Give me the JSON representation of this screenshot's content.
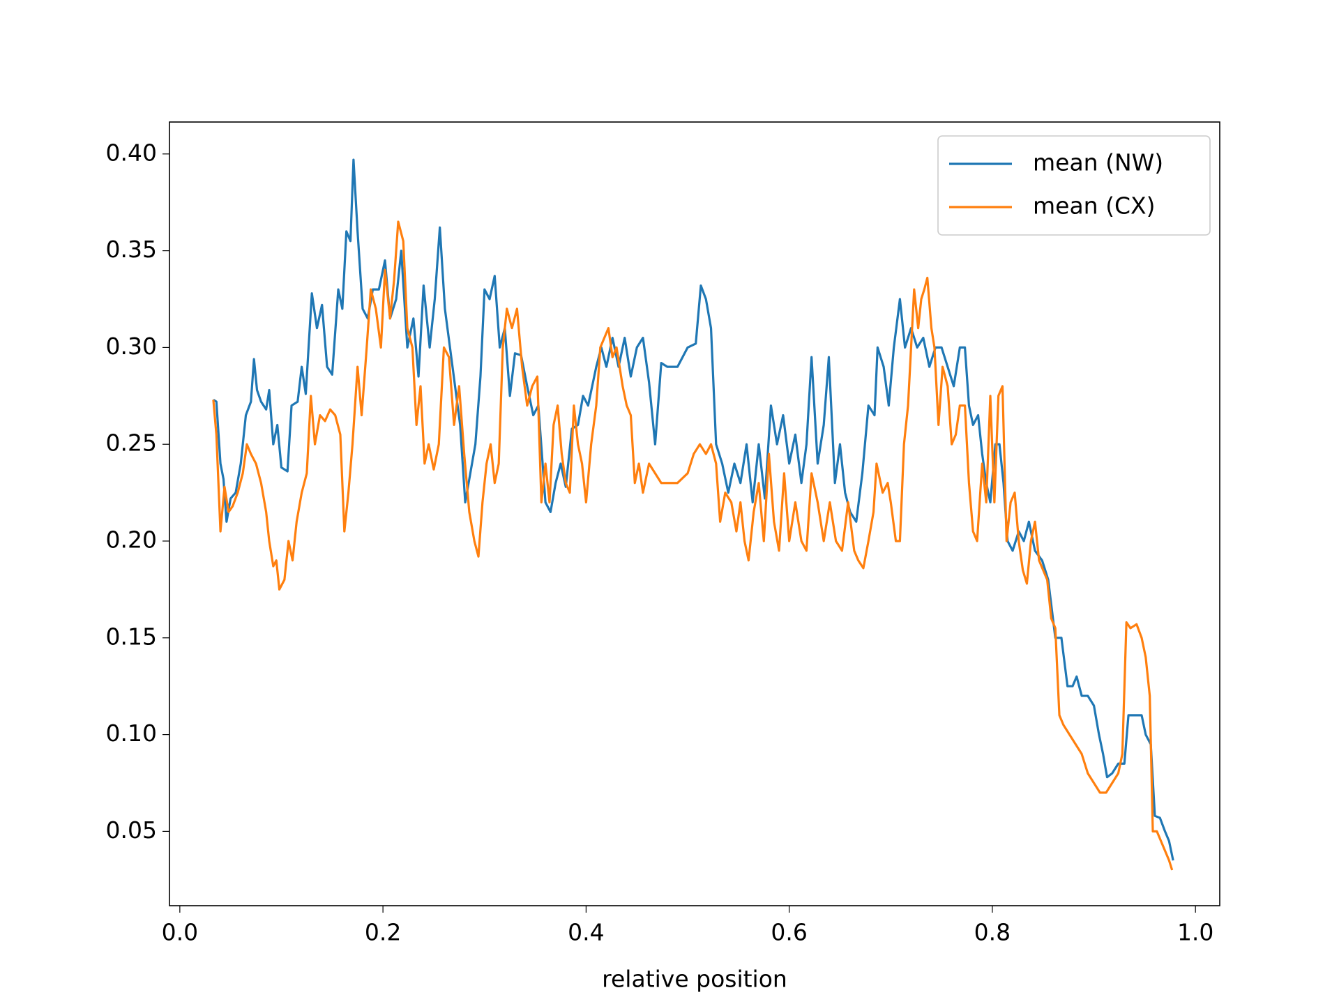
{
  "chart_data": {
    "type": "line",
    "xlabel": "relative position",
    "xlim": [
      -0.0102,
      1.0239
    ],
    "ylim": [
      0.0116,
      0.4165
    ],
    "xticks": [
      {
        "value": 0,
        "label": "0.0"
      },
      0.2,
      0.4,
      0.6,
      0.8,
      {
        "value": 1,
        "label": "1.0"
      }
    ],
    "yticks": [
      0.05,
      {
        "value": 0.1,
        "label": "0.10"
      },
      0.15,
      {
        "value": 0.2,
        "label": "0.20"
      },
      0.25,
      {
        "value": 0.3,
        "label": "0.30"
      },
      0.35,
      {
        "value": 0.4,
        "label": "0.40"
      }
    ],
    "legend": "upper right",
    "series": [
      {
        "name": "mean (NW)",
        "color": "#1f77b4",
        "x": [
          0.033,
          0.036,
          0.04,
          0.043,
          0.046,
          0.05,
          0.055,
          0.06,
          0.065,
          0.07,
          0.073,
          0.076,
          0.08,
          0.085,
          0.088,
          0.092,
          0.096,
          0.1,
          0.106,
          0.11,
          0.116,
          0.12,
          0.124,
          0.13,
          0.135,
          0.14,
          0.145,
          0.15,
          0.156,
          0.16,
          0.164,
          0.168,
          0.171,
          0.175,
          0.18,
          0.185,
          0.19,
          0.196,
          0.202,
          0.207,
          0.213,
          0.218,
          0.224,
          0.23,
          0.235,
          0.24,
          0.246,
          0.251,
          0.256,
          0.261,
          0.266,
          0.271,
          0.276,
          0.281,
          0.286,
          0.291,
          0.296,
          0.3,
          0.305,
          0.31,
          0.315,
          0.32,
          0.325,
          0.33,
          0.336,
          0.342,
          0.348,
          0.353,
          0.36,
          0.365,
          0.37,
          0.375,
          0.38,
          0.386,
          0.392,
          0.397,
          0.402,
          0.41,
          0.415,
          0.42,
          0.426,
          0.432,
          0.438,
          0.444,
          0.45,
          0.456,
          0.462,
          0.468,
          0.474,
          0.48,
          0.49,
          0.5,
          0.508,
          0.513,
          0.518,
          0.523,
          0.528,
          0.534,
          0.54,
          0.546,
          0.552,
          0.558,
          0.564,
          0.57,
          0.576,
          0.582,
          0.588,
          0.594,
          0.6,
          0.606,
          0.612,
          0.617,
          0.622,
          0.628,
          0.634,
          0.639,
          0.645,
          0.65,
          0.655,
          0.66,
          0.666,
          0.672,
          0.678,
          0.684,
          0.687,
          0.693,
          0.698,
          0.703,
          0.709,
          0.714,
          0.72,
          0.726,
          0.732,
          0.738,
          0.744,
          0.75,
          0.756,
          0.762,
          0.768,
          0.773,
          0.777,
          0.781,
          0.786,
          0.79,
          0.794,
          0.798,
          0.803,
          0.807,
          0.811,
          0.815,
          0.82,
          0.826,
          0.831,
          0.836,
          0.842,
          0.849,
          0.855,
          0.862,
          0.868,
          0.874,
          0.879,
          0.883,
          0.888,
          0.894,
          0.9,
          0.905,
          0.909,
          0.913,
          0.918,
          0.924,
          0.93,
          0.934,
          0.94,
          0.947,
          0.951,
          0.956,
          0.96,
          0.965,
          0.97,
          0.974,
          0.978
        ],
        "values": [
          0.273,
          0.272,
          0.24,
          0.232,
          0.21,
          0.222,
          0.225,
          0.24,
          0.265,
          0.272,
          0.294,
          0.278,
          0.272,
          0.268,
          0.278,
          0.25,
          0.26,
          0.238,
          0.236,
          0.27,
          0.272,
          0.29,
          0.276,
          0.328,
          0.31,
          0.322,
          0.29,
          0.286,
          0.33,
          0.32,
          0.36,
          0.355,
          0.397,
          0.36,
          0.32,
          0.315,
          0.33,
          0.33,
          0.345,
          0.315,
          0.325,
          0.35,
          0.3,
          0.315,
          0.285,
          0.332,
          0.3,
          0.325,
          0.362,
          0.32,
          0.3,
          0.28,
          0.26,
          0.22,
          0.235,
          0.25,
          0.285,
          0.33,
          0.325,
          0.337,
          0.3,
          0.31,
          0.275,
          0.297,
          0.296,
          0.28,
          0.265,
          0.27,
          0.22,
          0.215,
          0.23,
          0.24,
          0.228,
          0.258,
          0.26,
          0.275,
          0.27,
          0.29,
          0.3,
          0.29,
          0.305,
          0.29,
          0.305,
          0.285,
          0.3,
          0.305,
          0.282,
          0.25,
          0.292,
          0.29,
          0.29,
          0.3,
          0.302,
          0.332,
          0.325,
          0.31,
          0.25,
          0.24,
          0.225,
          0.24,
          0.23,
          0.25,
          0.22,
          0.25,
          0.222,
          0.27,
          0.25,
          0.265,
          0.24,
          0.255,
          0.23,
          0.25,
          0.295,
          0.24,
          0.26,
          0.295,
          0.23,
          0.25,
          0.225,
          0.215,
          0.21,
          0.235,
          0.27,
          0.265,
          0.3,
          0.29,
          0.27,
          0.3,
          0.325,
          0.3,
          0.31,
          0.3,
          0.305,
          0.29,
          0.3,
          0.3,
          0.29,
          0.28,
          0.3,
          0.3,
          0.27,
          0.26,
          0.265,
          0.245,
          0.23,
          0.22,
          0.25,
          0.25,
          0.23,
          0.2,
          0.195,
          0.205,
          0.2,
          0.21,
          0.195,
          0.19,
          0.18,
          0.15,
          0.15,
          0.125,
          0.125,
          0.13,
          0.12,
          0.12,
          0.115,
          0.1,
          0.09,
          0.078,
          0.08,
          0.085,
          0.085,
          0.11,
          0.11,
          0.11,
          0.1,
          0.095,
          0.058,
          0.057,
          0.05,
          0.045,
          0.035
        ]
      },
      {
        "name": "mean (CX)",
        "color": "#ff7f0e",
        "x": [
          0.033,
          0.036,
          0.04,
          0.044,
          0.048,
          0.052,
          0.057,
          0.062,
          0.066,
          0.07,
          0.075,
          0.08,
          0.085,
          0.088,
          0.092,
          0.095,
          0.098,
          0.103,
          0.107,
          0.111,
          0.115,
          0.12,
          0.125,
          0.129,
          0.133,
          0.138,
          0.143,
          0.148,
          0.153,
          0.158,
          0.162,
          0.166,
          0.17,
          0.175,
          0.179,
          0.184,
          0.188,
          0.193,
          0.198,
          0.202,
          0.207,
          0.211,
          0.215,
          0.22,
          0.224,
          0.229,
          0.233,
          0.237,
          0.241,
          0.245,
          0.25,
          0.255,
          0.26,
          0.265,
          0.27,
          0.275,
          0.28,
          0.285,
          0.29,
          0.294,
          0.298,
          0.302,
          0.306,
          0.31,
          0.314,
          0.318,
          0.322,
          0.327,
          0.332,
          0.337,
          0.342,
          0.347,
          0.352,
          0.356,
          0.36,
          0.364,
          0.368,
          0.372,
          0.376,
          0.38,
          0.384,
          0.388,
          0.392,
          0.396,
          0.4,
          0.405,
          0.41,
          0.414,
          0.418,
          0.422,
          0.426,
          0.43,
          0.436,
          0.44,
          0.444,
          0.448,
          0.452,
          0.456,
          0.462,
          0.468,
          0.474,
          0.48,
          0.49,
          0.5,
          0.506,
          0.512,
          0.518,
          0.523,
          0.528,
          0.532,
          0.537,
          0.543,
          0.548,
          0.552,
          0.556,
          0.56,
          0.565,
          0.57,
          0.575,
          0.58,
          0.585,
          0.59,
          0.595,
          0.6,
          0.606,
          0.612,
          0.617,
          0.622,
          0.628,
          0.634,
          0.64,
          0.646,
          0.652,
          0.658,
          0.664,
          0.668,
          0.673,
          0.678,
          0.683,
          0.686,
          0.692,
          0.697,
          0.7,
          0.705,
          0.709,
          0.713,
          0.717,
          0.72,
          0.723,
          0.727,
          0.73,
          0.733,
          0.736,
          0.74,
          0.743,
          0.747,
          0.751,
          0.756,
          0.76,
          0.764,
          0.768,
          0.773,
          0.777,
          0.781,
          0.785,
          0.79,
          0.794,
          0.798,
          0.802,
          0.806,
          0.81,
          0.814,
          0.818,
          0.822,
          0.826,
          0.83,
          0.834,
          0.838,
          0.842,
          0.846,
          0.85,
          0.854,
          0.858,
          0.862,
          0.866,
          0.87,
          0.876,
          0.882,
          0.888,
          0.894,
          0.9,
          0.906,
          0.912,
          0.918,
          0.924,
          0.928,
          0.932,
          0.936,
          0.942,
          0.947,
          0.951,
          0.955,
          0.958,
          0.962,
          0.966,
          0.97,
          0.974,
          0.977
        ],
        "values": [
          0.273,
          0.255,
          0.205,
          0.228,
          0.215,
          0.218,
          0.225,
          0.235,
          0.25,
          0.245,
          0.24,
          0.23,
          0.215,
          0.2,
          0.187,
          0.19,
          0.175,
          0.18,
          0.2,
          0.19,
          0.21,
          0.225,
          0.235,
          0.275,
          0.25,
          0.265,
          0.262,
          0.268,
          0.265,
          0.255,
          0.205,
          0.225,
          0.25,
          0.29,
          0.265,
          0.3,
          0.33,
          0.32,
          0.3,
          0.34,
          0.315,
          0.335,
          0.365,
          0.355,
          0.31,
          0.3,
          0.26,
          0.28,
          0.24,
          0.25,
          0.237,
          0.25,
          0.3,
          0.295,
          0.26,
          0.28,
          0.245,
          0.215,
          0.2,
          0.192,
          0.22,
          0.24,
          0.25,
          0.23,
          0.24,
          0.3,
          0.32,
          0.31,
          0.32,
          0.29,
          0.27,
          0.28,
          0.285,
          0.22,
          0.24,
          0.22,
          0.26,
          0.27,
          0.245,
          0.23,
          0.225,
          0.27,
          0.25,
          0.24,
          0.22,
          0.25,
          0.27,
          0.3,
          0.305,
          0.31,
          0.295,
          0.3,
          0.28,
          0.27,
          0.265,
          0.23,
          0.24,
          0.225,
          0.24,
          0.235,
          0.23,
          0.23,
          0.23,
          0.235,
          0.245,
          0.25,
          0.245,
          0.25,
          0.24,
          0.21,
          0.225,
          0.22,
          0.205,
          0.22,
          0.2,
          0.19,
          0.215,
          0.23,
          0.2,
          0.245,
          0.21,
          0.195,
          0.235,
          0.2,
          0.22,
          0.2,
          0.195,
          0.235,
          0.22,
          0.2,
          0.22,
          0.2,
          0.195,
          0.22,
          0.195,
          0.19,
          0.186,
          0.2,
          0.215,
          0.24,
          0.225,
          0.23,
          0.22,
          0.2,
          0.2,
          0.25,
          0.27,
          0.3,
          0.33,
          0.31,
          0.325,
          0.33,
          0.336,
          0.31,
          0.3,
          0.26,
          0.29,
          0.28,
          0.25,
          0.255,
          0.27,
          0.27,
          0.23,
          0.205,
          0.2,
          0.24,
          0.22,
          0.275,
          0.22,
          0.275,
          0.28,
          0.2,
          0.22,
          0.225,
          0.2,
          0.185,
          0.178,
          0.2,
          0.21,
          0.19,
          0.185,
          0.18,
          0.16,
          0.155,
          0.11,
          0.105,
          0.1,
          0.095,
          0.09,
          0.08,
          0.075,
          0.07,
          0.07,
          0.075,
          0.08,
          0.09,
          0.158,
          0.155,
          0.157,
          0.15,
          0.14,
          0.12,
          0.05,
          0.05,
          0.045,
          0.04,
          0.035,
          0.03
        ]
      }
    ]
  }
}
